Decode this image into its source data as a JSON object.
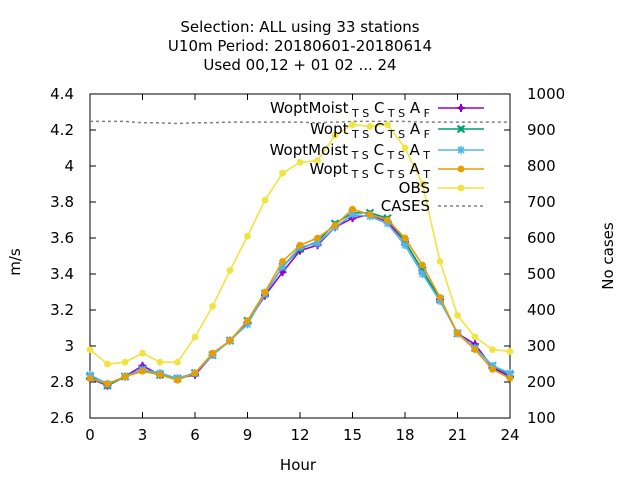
{
  "chart_data": {
    "type": "line",
    "title_lines": [
      "Selection: ALL using    33 stations",
      "U10m   Period: 20180601-20180614",
      "Used  00,12  + 01 02 ... 24"
    ],
    "xlabel": "Hour",
    "ylabel": "m/s",
    "y2label": "No cases",
    "xlim": [
      0,
      24
    ],
    "ylim": [
      2.6,
      4.4
    ],
    "y2lim": [
      100,
      1000
    ],
    "xticks": [
      0,
      3,
      6,
      9,
      12,
      15,
      18,
      21,
      24
    ],
    "yticks": [
      2.6,
      2.8,
      3.0,
      3.2,
      3.4,
      3.6,
      3.8,
      4.0,
      4.2,
      4.4
    ],
    "ytick_labels": [
      "2.6",
      "2.8",
      "3",
      "3.2",
      "3.4",
      "3.6",
      "3.8",
      "4",
      "4.2",
      "4.4"
    ],
    "y2ticks": [
      100,
      200,
      300,
      400,
      500,
      600,
      700,
      800,
      900,
      1000
    ],
    "grid": false,
    "legend_position": "top-right",
    "x": [
      0,
      1,
      2,
      3,
      4,
      5,
      6,
      7,
      8,
      9,
      10,
      11,
      12,
      13,
      14,
      15,
      16,
      17,
      18,
      19,
      20,
      21,
      22,
      23,
      24
    ],
    "series": [
      {
        "name": "WoptMoist",
        "sub1": "T S",
        "mid1": "C",
        "sub2": "T S",
        "mid2": "A",
        "sub3": "F",
        "color": "#9400d3",
        "marker": "plus",
        "axis": "y1",
        "values": [
          2.82,
          2.78,
          2.83,
          2.89,
          2.84,
          2.82,
          2.84,
          2.95,
          3.03,
          3.13,
          3.28,
          3.41,
          3.53,
          3.56,
          3.66,
          3.71,
          3.73,
          3.69,
          3.58,
          3.42,
          3.26,
          3.07,
          3.01,
          2.88,
          2.83
        ]
      },
      {
        "name": "Wopt",
        "sub1": "T S",
        "mid1": "C",
        "sub2": "T S",
        "mid2": "A",
        "sub3": "F",
        "color": "#009e73",
        "marker": "x",
        "axis": "y1",
        "values": [
          2.83,
          2.78,
          2.83,
          2.87,
          2.84,
          2.82,
          2.85,
          2.95,
          3.03,
          3.14,
          3.29,
          3.44,
          3.54,
          3.58,
          3.68,
          3.74,
          3.74,
          3.71,
          3.58,
          3.42,
          3.26,
          3.07,
          2.99,
          2.89,
          2.84
        ]
      },
      {
        "name": "WoptMoist",
        "sub1": "T S",
        "mid1": "C",
        "sub2": "T S",
        "mid2": "A",
        "sub3": "T",
        "color": "#56b4e9",
        "marker": "star",
        "axis": "y1",
        "values": [
          2.84,
          2.79,
          2.83,
          2.87,
          2.85,
          2.82,
          2.85,
          2.95,
          3.03,
          3.12,
          3.29,
          3.44,
          3.55,
          3.57,
          3.66,
          3.73,
          3.72,
          3.68,
          3.56,
          3.4,
          3.25,
          3.07,
          2.99,
          2.89,
          2.85
        ]
      },
      {
        "name": "Wopt",
        "sub1": "T S",
        "mid1": "C",
        "sub2": "T S",
        "mid2": "A",
        "sub3": "T",
        "color": "#e69f00",
        "marker": "circle",
        "axis": "y1",
        "values": [
          2.82,
          2.79,
          2.83,
          2.86,
          2.84,
          2.81,
          2.85,
          2.96,
          3.03,
          3.14,
          3.3,
          3.47,
          3.56,
          3.6,
          3.67,
          3.76,
          3.73,
          3.7,
          3.6,
          3.45,
          3.27,
          3.07,
          2.98,
          2.87,
          2.82
        ]
      },
      {
        "name": "OBS",
        "color": "#f0e442",
        "marker": "circle",
        "axis": "y1",
        "values": [
          2.98,
          2.9,
          2.91,
          2.96,
          2.91,
          2.91,
          3.05,
          3.22,
          3.42,
          3.61,
          3.81,
          3.96,
          4.02,
          4.03,
          4.17,
          4.23,
          4.22,
          4.23,
          4.1,
          3.9,
          3.47,
          3.17,
          3.05,
          2.98,
          2.97
        ]
      },
      {
        "name": "CASES",
        "color": "#808080",
        "marker": "none",
        "dash": true,
        "axis": "y2",
        "values": [
          924,
          924,
          924,
          920,
          920,
          918,
          920,
          920,
          922,
          922,
          922,
          922,
          922,
          920,
          922,
          924,
          924,
          924,
          924,
          922,
          922,
          922,
          922,
          922,
          922
        ]
      }
    ]
  }
}
